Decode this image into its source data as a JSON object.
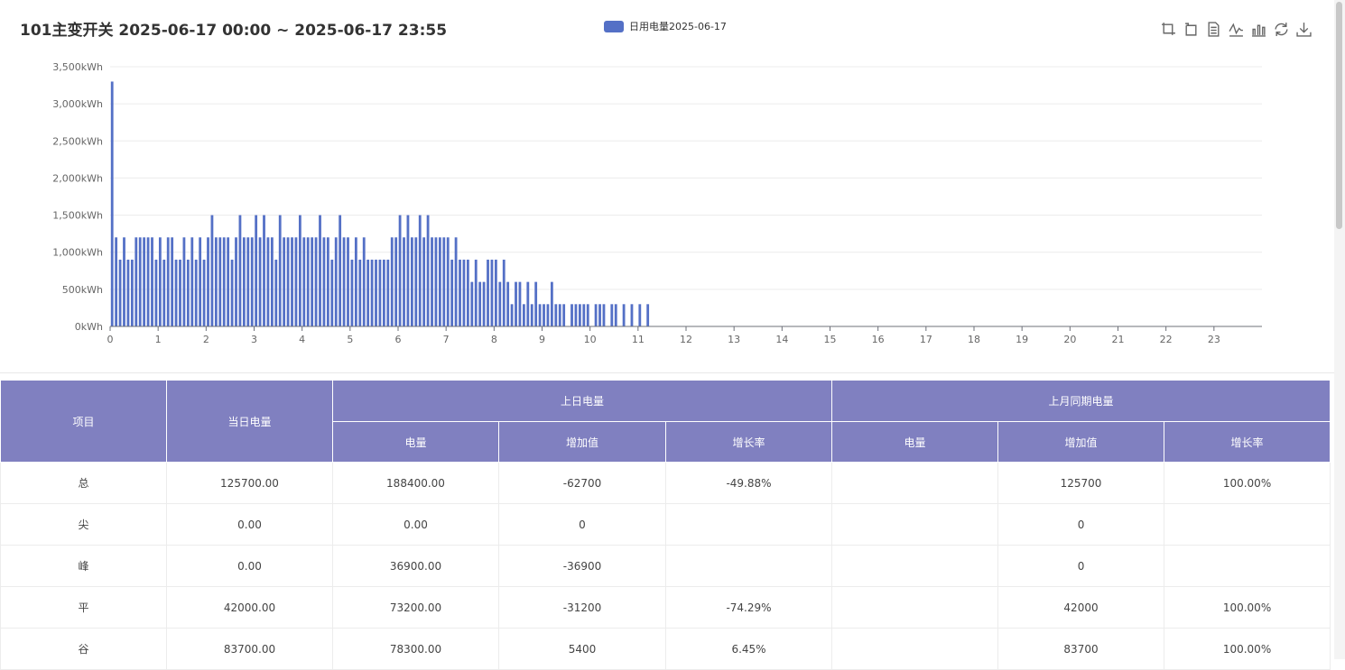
{
  "title": "101主变开关 2025-06-17 00:00 ~ 2025-06-17 23:55",
  "legend": {
    "label": "日用电量2025-06-17",
    "color": "#5470c6"
  },
  "toolbar": [
    "zoom-icon",
    "zoom-reset-icon",
    "data-view-icon",
    "line-chart-icon",
    "bar-chart-icon",
    "restore-icon",
    "download-icon"
  ],
  "chart_data": {
    "type": "bar",
    "series": [
      {
        "name": "日用电量2025-06-17",
        "color": "#5470c6"
      }
    ],
    "y_ticks": [
      "0kWh",
      "500kWh",
      "1,000kWh",
      "1,500kWh",
      "2,000kWh",
      "2,500kWh",
      "3,000kWh",
      "3,500kWh"
    ],
    "x_ticks": [
      "0",
      "1",
      "2",
      "3",
      "4",
      "5",
      "6",
      "7",
      "8",
      "9",
      "10",
      "11",
      "12",
      "13",
      "14",
      "15",
      "16",
      "17",
      "18",
      "19",
      "20",
      "21",
      "22",
      "23"
    ],
    "ylim": [
      0,
      3500
    ],
    "x_step_hours": 0.0833,
    "values": [
      3300,
      1200,
      900,
      1200,
      900,
      900,
      1200,
      1200,
      1200,
      1200,
      1200,
      900,
      1200,
      900,
      1200,
      1200,
      900,
      900,
      1200,
      900,
      1200,
      900,
      1200,
      900,
      1200,
      1500,
      1200,
      1200,
      1200,
      1200,
      900,
      1200,
      1500,
      1200,
      1200,
      1200,
      1500,
      1200,
      1500,
      1200,
      1200,
      900,
      1500,
      1200,
      1200,
      1200,
      1200,
      1500,
      1200,
      1200,
      1200,
      1200,
      1500,
      1200,
      1200,
      900,
      1200,
      1500,
      1200,
      1200,
      900,
      1200,
      900,
      1200,
      900,
      900,
      900,
      900,
      900,
      900,
      1200,
      1200,
      1500,
      1200,
      1500,
      1200,
      1200,
      1500,
      1200,
      1500,
      1200,
      1200,
      1200,
      1200,
      1200,
      900,
      1200,
      900,
      900,
      900,
      600,
      900,
      600,
      600,
      900,
      900,
      900,
      600,
      900,
      600,
      300,
      600,
      600,
      300,
      600,
      300,
      600,
      300,
      300,
      300,
      600,
      300,
      300,
      300,
      0,
      300,
      300,
      300,
      300,
      300,
      0,
      300,
      300,
      300,
      0,
      300,
      300,
      0,
      300,
      0,
      300,
      0,
      300,
      0,
      300
    ]
  },
  "table": {
    "headers": {
      "item": "项目",
      "today": "当日电量",
      "prev_day": "上日电量",
      "prev_month": "上月同期电量",
      "energy": "电量",
      "increase": "增加值",
      "growth": "增长率"
    },
    "rows": [
      {
        "item": "总",
        "today": "125700.00",
        "pd_energy": "188400.00",
        "pd_inc": "-62700",
        "pd_rate": "-49.88%",
        "pm_energy": "",
        "pm_inc": "125700",
        "pm_rate": "100.00%"
      },
      {
        "item": "尖",
        "today": "0.00",
        "pd_energy": "0.00",
        "pd_inc": "0",
        "pd_rate": "",
        "pm_energy": "",
        "pm_inc": "0",
        "pm_rate": ""
      },
      {
        "item": "峰",
        "today": "0.00",
        "pd_energy": "36900.00",
        "pd_inc": "-36900",
        "pd_rate": "",
        "pm_energy": "",
        "pm_inc": "0",
        "pm_rate": ""
      },
      {
        "item": "平",
        "today": "42000.00",
        "pd_energy": "73200.00",
        "pd_inc": "-31200",
        "pd_rate": "-74.29%",
        "pm_energy": "",
        "pm_inc": "42000",
        "pm_rate": "100.00%"
      },
      {
        "item": "谷",
        "today": "83700.00",
        "pd_energy": "78300.00",
        "pd_inc": "5400",
        "pd_rate": "6.45%",
        "pm_energy": "",
        "pm_inc": "83700",
        "pm_rate": "100.00%"
      }
    ]
  }
}
